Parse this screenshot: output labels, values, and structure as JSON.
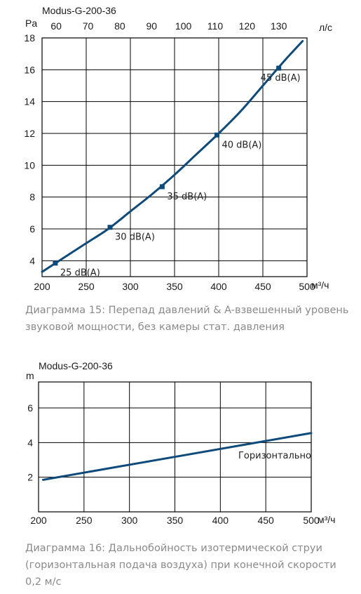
{
  "chart_data": [
    {
      "type": "line",
      "title": "Modus-G-200-36",
      "xunit": "м³/ч",
      "yunit": "Pa",
      "x2unit": "л/с",
      "xlim": [
        200,
        500
      ],
      "ylim": [
        3,
        18
      ],
      "xticks": [
        200,
        250,
        300,
        350,
        400,
        450,
        500
      ],
      "yticks": [
        4,
        6,
        8,
        10,
        12,
        14,
        16,
        18
      ],
      "x2ticks": [
        60,
        70,
        80,
        90,
        100,
        110,
        120,
        130
      ],
      "grid": true,
      "series": [
        {
          "x": [
            200,
            225,
            250,
            275,
            300,
            325,
            350,
            375,
            400,
            425,
            450,
            475,
            495
          ],
          "y": [
            3.3,
            4.2,
            5.1,
            6.0,
            7.1,
            8.2,
            9.4,
            10.7,
            12.0,
            13.4,
            15.0,
            16.6,
            17.8
          ]
        }
      ],
      "markers": [
        {
          "x": 215,
          "y": 3.85,
          "label": "25 dB(A)"
        },
        {
          "x": 277,
          "y": 6.1,
          "label": "30 dB(A)"
        },
        {
          "x": 336,
          "y": 8.65,
          "label": "35 dB(A)"
        },
        {
          "x": 398,
          "y": 11.9,
          "label": "40 dB(A)"
        },
        {
          "x": 468,
          "y": 16.1,
          "label": "45 dB(A)"
        }
      ],
      "caption": "Диаграмма 15: Перепад давлений & A-взвешенный уровень звуковой мощности, без камеры стат. давления"
    },
    {
      "type": "line",
      "title": "Modus-G-200-36",
      "xunit": "м³/ч",
      "yunit": "m",
      "xlim": [
        200,
        500
      ],
      "ylim": [
        0,
        7.5
      ],
      "xticks": [
        200,
        250,
        300,
        350,
        400,
        450,
        500
      ],
      "yticks": [
        2,
        4,
        6
      ],
      "grid": true,
      "series": [
        {
          "name": "Горизонтально",
          "x": [
            205,
            500
          ],
          "y": [
            1.85,
            4.55
          ]
        }
      ],
      "caption": "Диаграмма 16: Дальнобойность изотермической струи (горизонтальная подача воздуха) при конечной скорости 0,2 м/с"
    }
  ]
}
